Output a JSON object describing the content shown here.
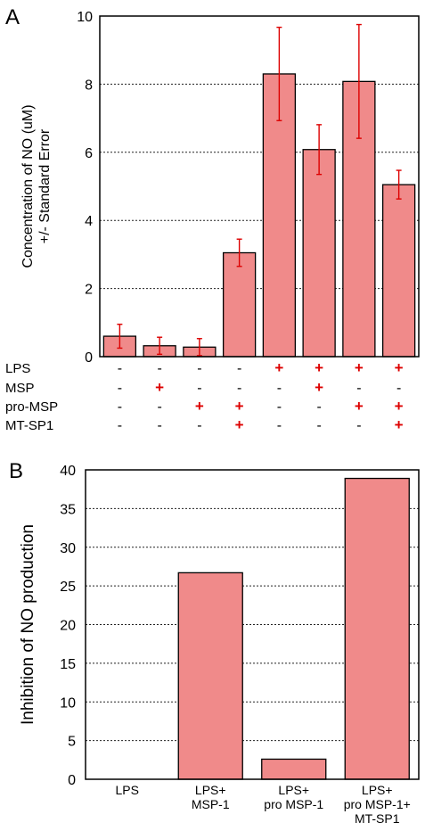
{
  "chart_data": [
    {
      "panel": "A",
      "type": "bar",
      "ylabel": [
        "Concentration of NO (uM)",
        "+/- Standard Error"
      ],
      "ylim": [
        0,
        10
      ],
      "yticks": [
        0,
        2,
        4,
        6,
        8,
        10
      ],
      "grid": true,
      "values": [
        0.6,
        0.32,
        0.28,
        3.05,
        8.3,
        6.08,
        8.08,
        5.05
      ],
      "errors": [
        0.35,
        0.25,
        0.25,
        0.4,
        1.37,
        0.73,
        1.67,
        0.42
      ],
      "treatment_rows": [
        {
          "label": "LPS",
          "signs": [
            "-",
            "-",
            "-",
            "-",
            "+",
            "+",
            "+",
            "+"
          ]
        },
        {
          "label": "MSP",
          "signs": [
            "-",
            "+",
            "-",
            "-",
            "-",
            "+",
            "-",
            "-"
          ]
        },
        {
          "label": "pro-MSP",
          "signs": [
            "-",
            "-",
            "+",
            "+",
            "-",
            "-",
            "+",
            "+"
          ]
        },
        {
          "label": "MT-SP1",
          "signs": [
            "-",
            "-",
            "-",
            "+",
            "-",
            "-",
            "-",
            "+"
          ]
        }
      ]
    },
    {
      "panel": "B",
      "type": "bar",
      "ylabel": "Inhibition of NO production",
      "ylim": [
        0,
        40
      ],
      "yticks": [
        0,
        5,
        10,
        15,
        20,
        25,
        30,
        35,
        40
      ],
      "grid": true,
      "categories": [
        [
          "LPS"
        ],
        [
          "LPS+",
          "MSP-1"
        ],
        [
          "LPS+",
          "pro MSP-1"
        ],
        [
          "LPS+",
          "pro MSP-1+",
          "MT-SP1"
        ]
      ],
      "values": [
        0,
        26.7,
        2.6,
        38.9
      ]
    }
  ],
  "colors": {
    "bar_fill": "#f08a8a",
    "error_bar": "#dd0000",
    "plus_sign": "#dd0000",
    "frame": "#000000"
  }
}
